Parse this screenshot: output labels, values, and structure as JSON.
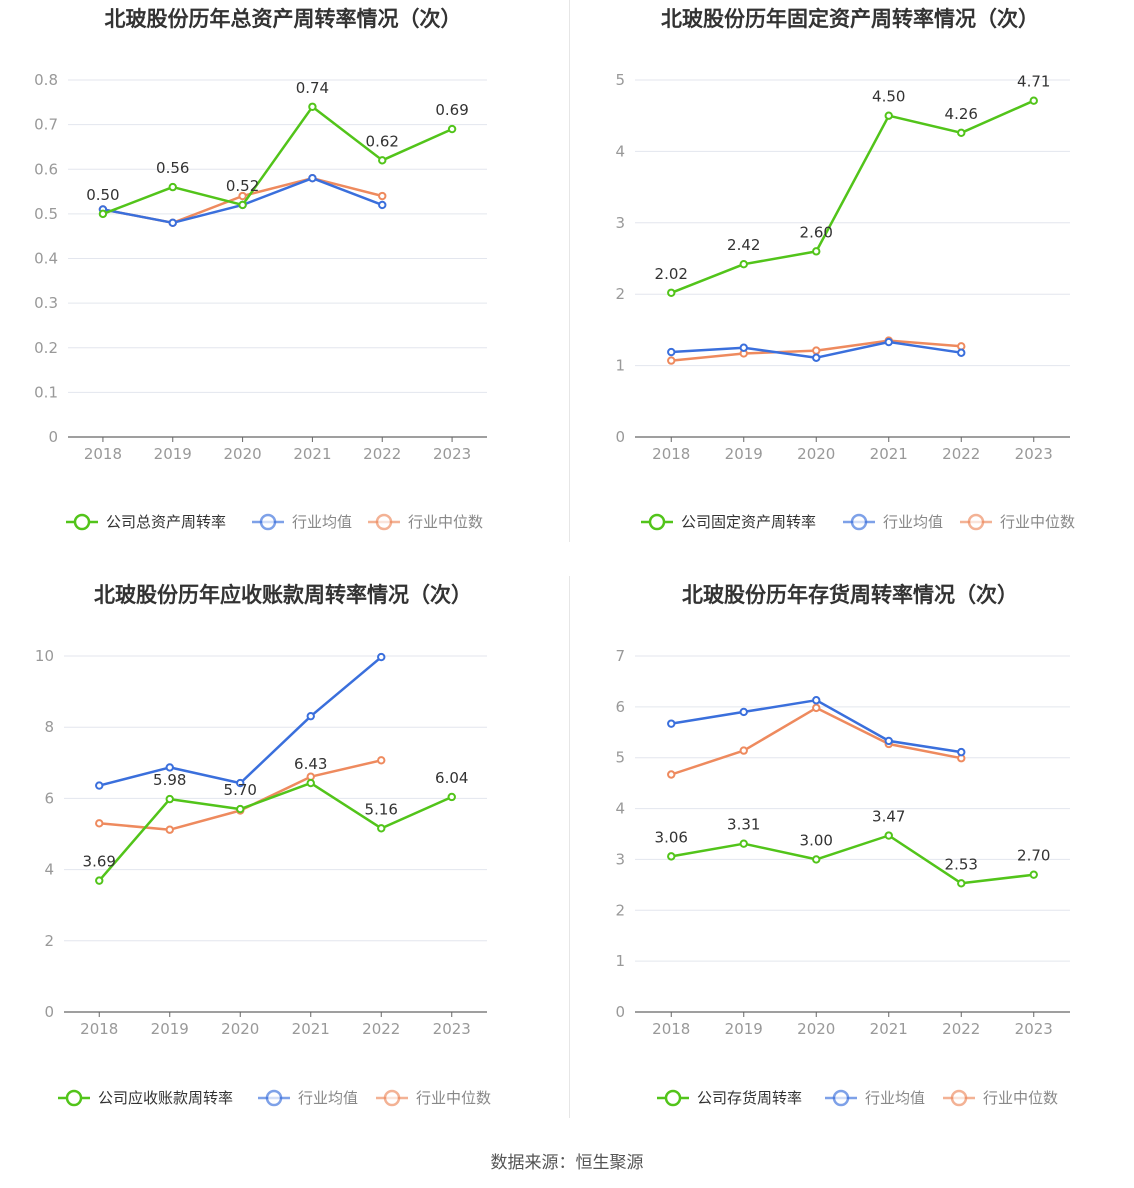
{
  "source_text": "数据来源：恒生聚源",
  "colors": {
    "company": "#52c41a",
    "avg": "#3a6fdc",
    "median": "#ee8a5e",
    "grid": "#e3e6ee",
    "axis": "#666666",
    "text": "#999999",
    "label": "#333333"
  },
  "chart_data": [
    {
      "type": "line",
      "title": "北玻股份历年总资产周转率情况（次）",
      "categories": [
        "2018",
        "2019",
        "2020",
        "2021",
        "2022",
        "2023"
      ],
      "ylim": [
        0,
        0.8
      ],
      "yticks": [
        "0",
        "0.1",
        "0.2",
        "0.3",
        "0.4",
        "0.5",
        "0.6",
        "0.7",
        "0.8"
      ],
      "series": [
        {
          "name": "公司总资产周转率",
          "key": "company",
          "values": [
            0.5,
            0.56,
            0.52,
            0.74,
            0.62,
            0.69
          ],
          "labels": [
            "0.50",
            "0.56",
            "0.52",
            "0.74",
            "0.62",
            "0.69"
          ]
        },
        {
          "name": "行业均值",
          "key": "avg",
          "values": [
            0.51,
            0.48,
            0.52,
            0.58,
            0.52,
            null
          ]
        },
        {
          "name": "行业中位数",
          "key": "median",
          "values": [
            0.51,
            0.48,
            0.54,
            0.58,
            0.54,
            null
          ]
        }
      ],
      "grid": true,
      "legend": "bottom"
    },
    {
      "type": "line",
      "title": "北玻股份历年固定资产周转率情况（次）",
      "categories": [
        "2018",
        "2019",
        "2020",
        "2021",
        "2022",
        "2023"
      ],
      "ylim": [
        0,
        5
      ],
      "yticks": [
        "0",
        "1",
        "2",
        "3",
        "4",
        "5"
      ],
      "series": [
        {
          "name": "公司固定资产周转率",
          "key": "company",
          "values": [
            2.02,
            2.42,
            2.6,
            4.5,
            4.26,
            4.71
          ],
          "labels": [
            "2.02",
            "2.42",
            "2.60",
            "4.50",
            "4.26",
            "4.71"
          ]
        },
        {
          "name": "行业均值",
          "key": "avg",
          "values": [
            1.19,
            1.25,
            1.11,
            1.33,
            1.18,
            null
          ]
        },
        {
          "name": "行业中位数",
          "key": "median",
          "values": [
            1.07,
            1.17,
            1.21,
            1.35,
            1.27,
            null
          ]
        }
      ],
      "grid": true,
      "legend": "bottom"
    },
    {
      "type": "line",
      "title": "北玻股份历年应收账款周转率情况（次）",
      "categories": [
        "2018",
        "2019",
        "2020",
        "2021",
        "2022",
        "2023"
      ],
      "ylim": [
        0,
        10
      ],
      "yticks": [
        "0",
        "2",
        "4",
        "6",
        "8",
        "10"
      ],
      "series": [
        {
          "name": "公司应收账款周转率",
          "key": "company",
          "values": [
            3.69,
            5.98,
            5.7,
            6.43,
            5.16,
            6.04
          ],
          "labels": [
            "3.69",
            "5.98",
            "5.70",
            "6.43",
            "5.16",
            "6.04"
          ]
        },
        {
          "name": "行业均值",
          "key": "avg",
          "values": [
            6.36,
            6.87,
            6.43,
            8.31,
            9.97,
            null
          ]
        },
        {
          "name": "行业中位数",
          "key": "median",
          "values": [
            5.3,
            5.12,
            5.66,
            6.61,
            7.07,
            null
          ]
        }
      ],
      "grid": true,
      "legend": "bottom"
    },
    {
      "type": "line",
      "title": "北玻股份历年存货周转率情况（次）",
      "categories": [
        "2018",
        "2019",
        "2020",
        "2021",
        "2022",
        "2023"
      ],
      "ylim": [
        0,
        7
      ],
      "yticks": [
        "0",
        "1",
        "2",
        "3",
        "4",
        "5",
        "6",
        "7"
      ],
      "series": [
        {
          "name": "公司存货周转率",
          "key": "company",
          "values": [
            3.06,
            3.31,
            3.0,
            3.47,
            2.53,
            2.7
          ],
          "labels": [
            "3.06",
            "3.31",
            "3.00",
            "3.47",
            "2.53",
            "2.70"
          ]
        },
        {
          "name": "行业均值",
          "key": "avg",
          "values": [
            5.67,
            5.9,
            6.13,
            5.33,
            5.11,
            null
          ]
        },
        {
          "name": "行业中位数",
          "key": "median",
          "values": [
            4.67,
            5.14,
            5.98,
            5.27,
            4.99,
            null
          ]
        }
      ],
      "grid": true,
      "legend": "bottom"
    }
  ]
}
